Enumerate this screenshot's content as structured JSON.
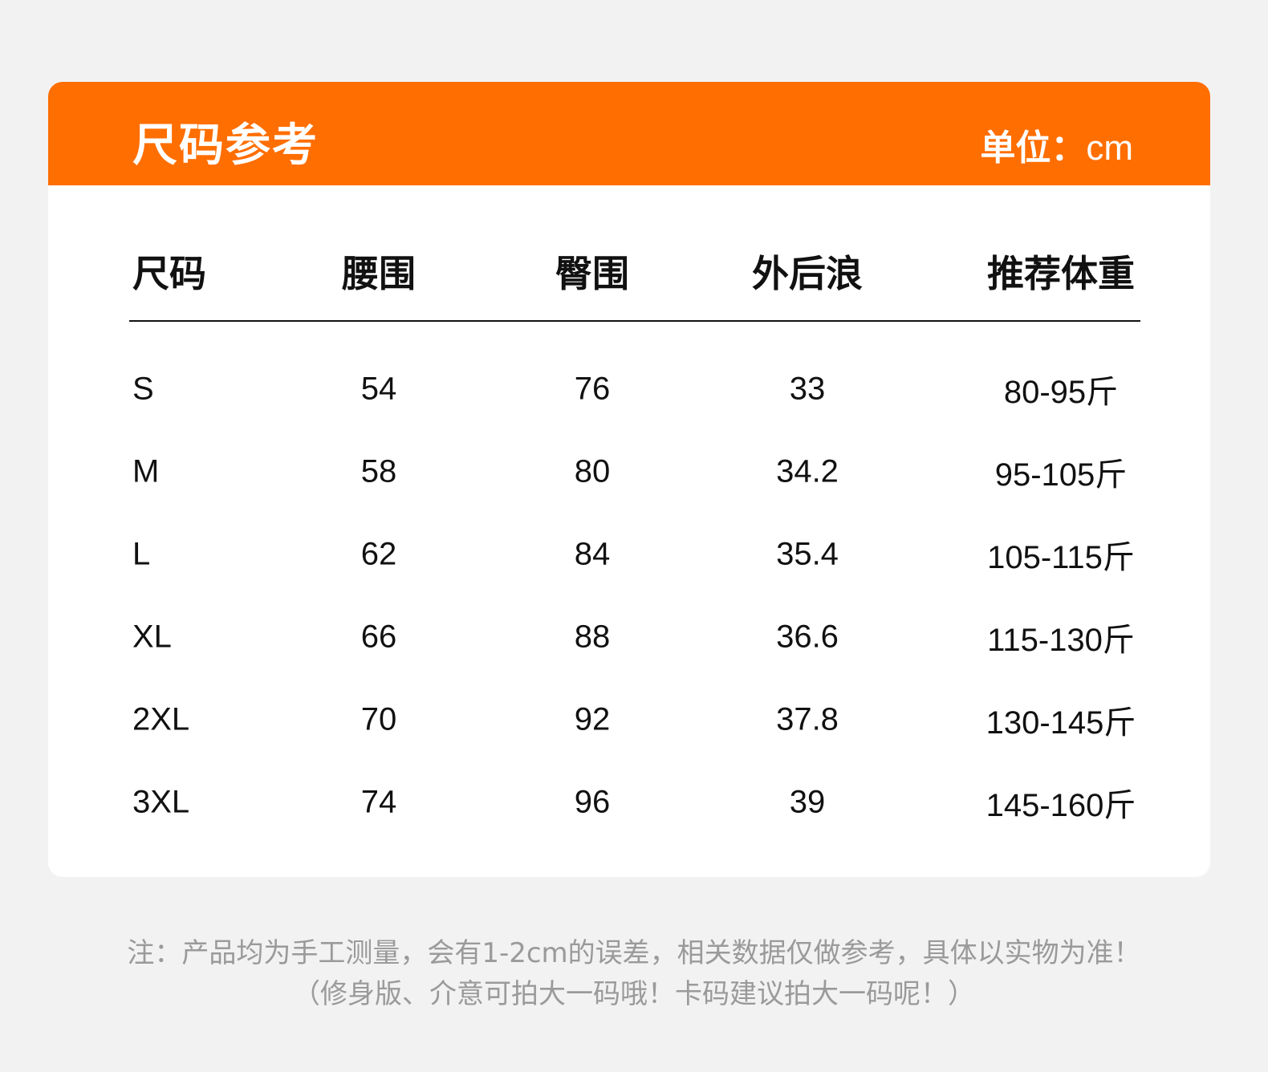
{
  "header": {
    "title": "尺码参考",
    "unit_label": "单位：",
    "unit_value": "cm"
  },
  "table": {
    "columns": [
      "尺码",
      "腰围",
      "臀围",
      "外后浪",
      "推荐体重"
    ],
    "rows": [
      [
        "S",
        "54",
        "76",
        "33",
        "80-95斤"
      ],
      [
        "M",
        "58",
        "80",
        "34.2",
        "95-105斤"
      ],
      [
        "L",
        "62",
        "84",
        "35.4",
        "105-115斤"
      ],
      [
        "XL",
        "66",
        "88",
        "36.6",
        "115-130斤"
      ],
      [
        "2XL",
        "70",
        "92",
        "37.8",
        "130-145斤"
      ],
      [
        "3XL",
        "74",
        "96",
        "39",
        "145-160斤"
      ]
    ]
  },
  "notes": [
    "注：产品均为手工测量，会有1-2cm的误差，相关数据仅做参考，具体以实物为准！",
    "（修身版、介意可拍大一码哦！卡码建议拍大一码呢！）"
  ],
  "colors": {
    "accent": "#ff6e00",
    "background": "#f2f2f2",
    "note_text": "#9a9a9a"
  }
}
